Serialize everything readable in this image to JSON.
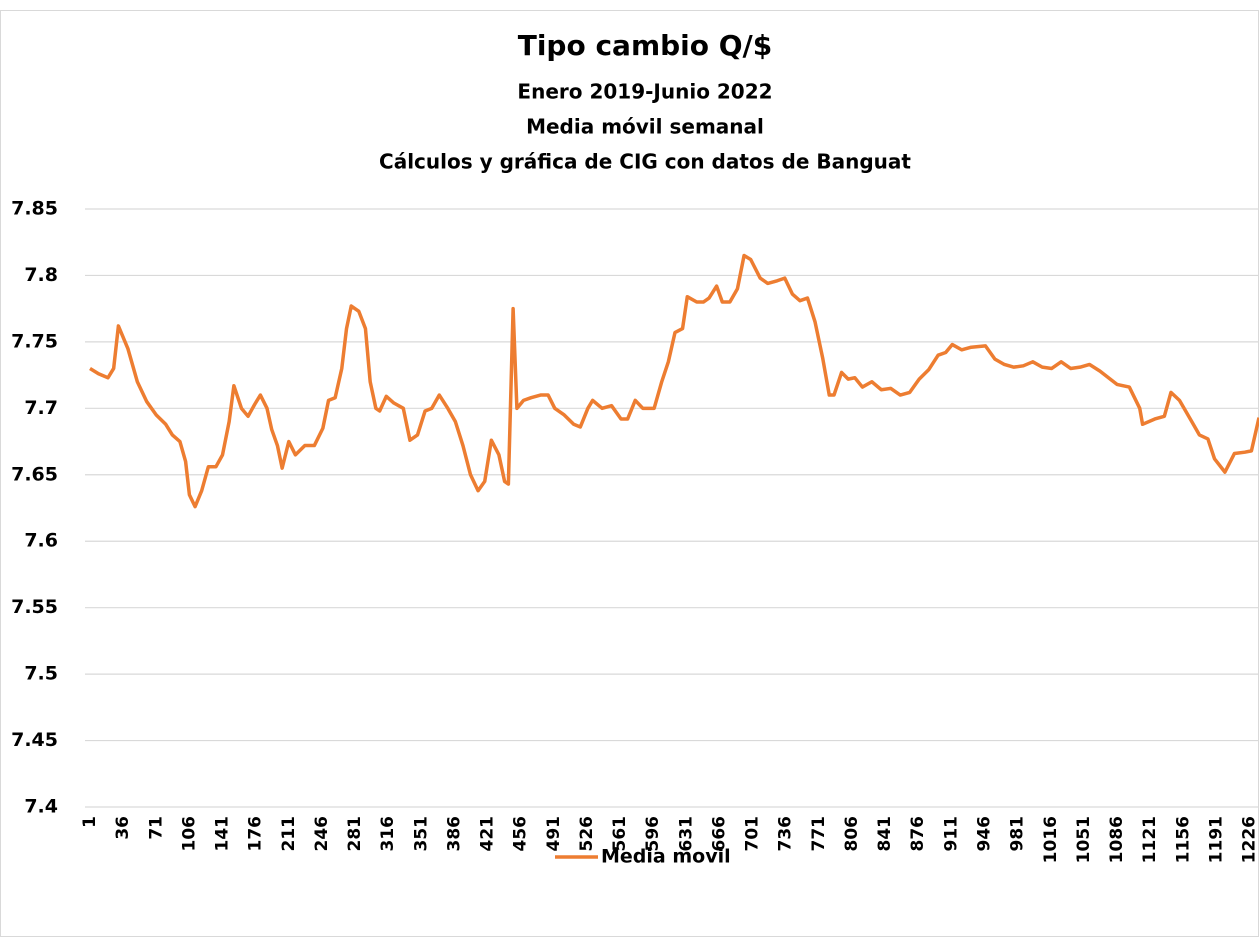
{
  "chart_data": {
    "type": "line",
    "title": "Tipo cambio Q/$",
    "subtitles": [
      "Enero 2019-Junio 2022",
      "Media móvil semanal",
      "Cálculos y gráfica de CIG con datos de Banguat"
    ],
    "x": [
      1,
      10,
      20,
      26,
      31,
      41,
      51,
      61,
      71,
      81,
      88,
      96,
      102,
      106,
      112,
      119,
      126,
      134,
      141,
      148,
      153,
      161,
      168,
      175,
      181,
      188,
      193,
      199,
      204,
      211,
      218,
      228,
      238,
      247,
      253,
      260,
      267,
      272,
      277,
      285,
      292,
      297,
      303,
      307,
      314,
      322,
      332,
      339,
      347,
      355,
      362,
      370,
      379,
      387,
      395,
      403,
      411,
      418,
      425,
      433,
      439,
      443,
      448,
      452,
      459,
      467,
      477,
      485,
      492,
      502,
      512,
      519,
      527,
      532,
      542,
      552,
      562,
      569,
      577,
      585,
      597,
      605,
      612,
      619,
      627,
      632,
      642,
      649,
      655,
      663,
      669,
      677,
      685,
      692,
      699,
      709,
      717,
      727,
      735,
      743,
      751,
      759,
      767,
      775,
      782,
      787,
      795,
      802,
      809,
      817,
      827,
      837,
      847,
      857,
      867,
      877,
      887,
      897,
      905,
      912,
      922,
      932,
      947,
      957,
      967,
      977,
      987,
      997,
      1007,
      1017,
      1027,
      1037,
      1047,
      1057,
      1068,
      1086,
      1099,
      1110,
      1113,
      1126,
      1136,
      1143,
      1152,
      1165,
      1173,
      1182,
      1189,
      1200,
      1210,
      1221,
      1228,
      1236
    ],
    "series": [
      {
        "name": "Media movil",
        "color": "#ed7d31",
        "values": [
          7.73,
          7.726,
          7.723,
          7.73,
          7.762,
          7.745,
          7.72,
          7.705,
          7.695,
          7.688,
          7.68,
          7.675,
          7.66,
          7.635,
          7.626,
          7.638,
          7.656,
          7.656,
          7.665,
          7.69,
          7.717,
          7.7,
          7.694,
          7.703,
          7.71,
          7.7,
          7.684,
          7.672,
          7.655,
          7.675,
          7.665,
          7.672,
          7.672,
          7.685,
          7.706,
          7.708,
          7.73,
          7.76,
          7.777,
          7.773,
          7.76,
          7.72,
          7.7,
          7.698,
          7.709,
          7.704,
          7.7,
          7.676,
          7.68,
          7.698,
          7.7,
          7.71,
          7.7,
          7.69,
          7.672,
          7.65,
          7.638,
          7.645,
          7.676,
          7.665,
          7.645,
          7.643,
          7.775,
          7.7,
          7.706,
          7.708,
          7.71,
          7.71,
          7.7,
          7.695,
          7.688,
          7.686,
          7.7,
          7.706,
          7.7,
          7.702,
          7.692,
          7.692,
          7.706,
          7.7,
          7.7,
          7.72,
          7.735,
          7.757,
          7.76,
          7.784,
          7.78,
          7.78,
          7.783,
          7.792,
          7.78,
          7.78,
          7.79,
          7.815,
          7.812,
          7.798,
          7.794,
          7.796,
          7.798,
          7.786,
          7.781,
          7.783,
          7.765,
          7.738,
          7.71,
          7.71,
          7.727,
          7.722,
          7.723,
          7.716,
          7.72,
          7.714,
          7.715,
          7.71,
          7.712,
          7.722,
          7.729,
          7.74,
          7.742,
          7.748,
          7.744,
          7.746,
          7.747,
          7.737,
          7.733,
          7.731,
          7.732,
          7.735,
          7.731,
          7.73,
          7.735,
          7.73,
          7.731,
          7.733,
          7.728,
          7.718,
          7.716,
          7.7,
          7.688,
          7.692,
          7.694,
          7.712,
          7.706,
          7.69,
          7.68,
          7.677,
          7.662,
          7.652,
          7.666,
          7.667,
          7.668,
          7.693
        ]
      }
    ],
    "xlim": [
      1,
      1236
    ],
    "xticks": [
      1,
      36,
      71,
      106,
      141,
      176,
      211,
      246,
      281,
      316,
      351,
      386,
      421,
      456,
      491,
      526,
      561,
      596,
      631,
      666,
      701,
      736,
      771,
      806,
      841,
      876,
      911,
      946,
      981,
      1016,
      1051,
      1086,
      1121,
      1156,
      1191,
      1226
    ],
    "ylim": [
      7.4,
      7.85
    ],
    "yticks": [
      7.4,
      7.45,
      7.5,
      7.55,
      7.6,
      7.65,
      7.7,
      7.75,
      7.8,
      7.85
    ],
    "grid": true,
    "legend": "bottom"
  }
}
